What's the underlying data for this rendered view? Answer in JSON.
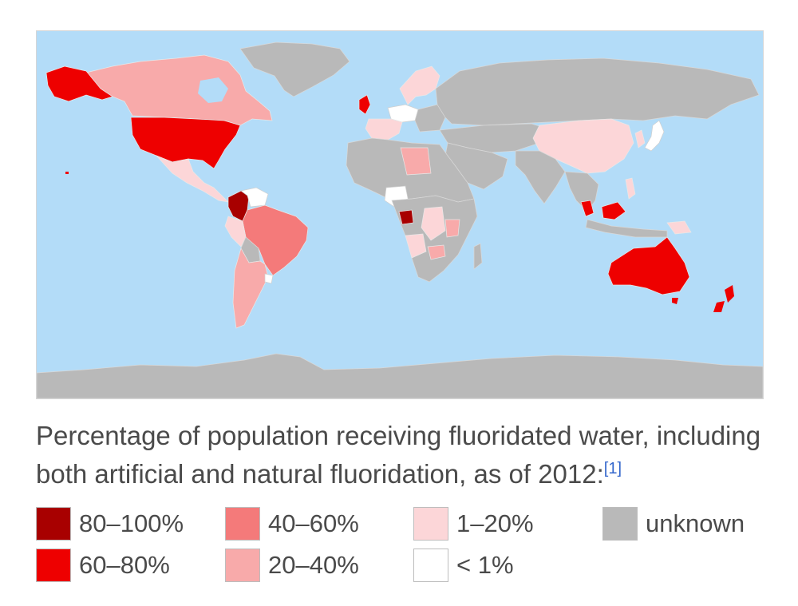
{
  "caption": {
    "text": "Percentage of population receiving fluoridated water, including both artificial and natural fluoridation, as of 2012:",
    "citation": "[1]"
  },
  "colors": {
    "ocean": "#b3dcf8",
    "unknown": "#b9b9b9",
    "p80_100": "#a80000",
    "p60_80": "#ee0000",
    "p40_60": "#f47a7a",
    "p20_40": "#f8aaaa",
    "p1_20": "#fcd6d8",
    "lt1": "#ffffff"
  },
  "legend": [
    {
      "id": "p80_100",
      "label": "80–100%",
      "color": "#a80000"
    },
    {
      "id": "p60_80",
      "label": "60–80%",
      "color": "#ee0000"
    },
    {
      "id": "p40_60",
      "label": "40–60%",
      "color": "#f47a7a"
    },
    {
      "id": "p20_40",
      "label": "20–40%",
      "color": "#f8aaaa"
    },
    {
      "id": "p1_20",
      "label": "1–20%",
      "color": "#fcd6d8"
    },
    {
      "id": "lt1",
      "label": "< 1%",
      "color": "#ffffff"
    },
    {
      "id": "unknown",
      "label": "unknown",
      "color": "#b9b9b9"
    }
  ]
}
